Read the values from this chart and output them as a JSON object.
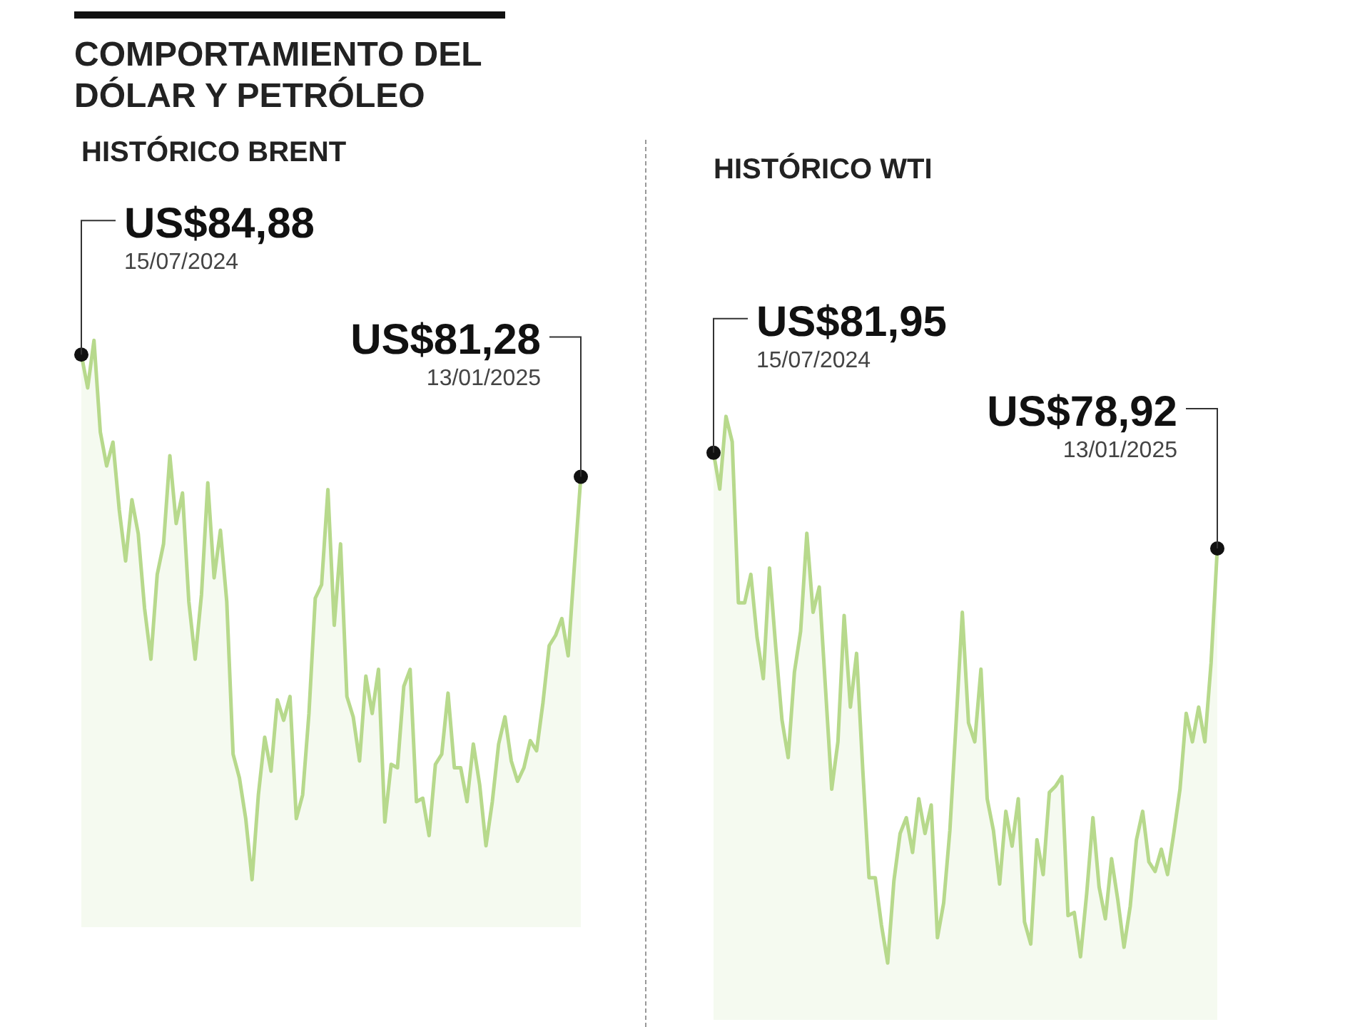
{
  "chart_data": [
    {
      "type": "area",
      "title": "COMPORTAMIENTO DEL DÓLAR Y PETRÓLEO",
      "subtitle": "HISTÓRICO BRENT",
      "categories": [
        null,
        null,
        null,
        null,
        null,
        null,
        null,
        null,
        null,
        null,
        null,
        null,
        null,
        null,
        null,
        null,
        null,
        null,
        null,
        null,
        null,
        null,
        null,
        null,
        null,
        null,
        null,
        null,
        null,
        null,
        null,
        null,
        null,
        null,
        null,
        null,
        null,
        null,
        null,
        null,
        null,
        null,
        null,
        null,
        null,
        null,
        null,
        null,
        null,
        null,
        null,
        null,
        null,
        null,
        null,
        null,
        null,
        null,
        null,
        null,
        null,
        null,
        null,
        null,
        null,
        null,
        null,
        null,
        null,
        null,
        null,
        null,
        null,
        null,
        null,
        null,
        null,
        null,
        null,
        null
      ],
      "series": [
        {
          "color": "#b7d98c",
          "values": [
            84.88,
            83.9,
            85.3,
            82.6,
            81.6,
            82.3,
            80.3,
            78.8,
            80.6,
            79.6,
            77.4,
            75.9,
            78.4,
            79.3,
            81.9,
            79.9,
            80.8,
            77.6,
            75.9,
            77.8,
            81.1,
            78.3,
            79.7,
            77.6,
            73.1,
            72.4,
            71.2,
            69.4,
            71.9,
            73.6,
            72.6,
            74.7,
            74.1,
            74.8,
            71.2,
            71.9,
            74.3,
            77.7,
            78.1,
            80.9,
            76.9,
            79.3,
            74.8,
            74.2,
            72.9,
            75.4,
            74.3,
            75.6,
            71.1,
            72.8,
            72.7,
            75.1,
            75.6,
            71.7,
            71.8,
            70.7,
            72.8,
            73.1,
            74.9,
            72.7,
            72.7,
            71.7,
            73.4,
            72.2,
            70.4,
            71.7,
            73.4,
            74.2,
            72.9,
            72.3,
            72.7,
            73.5,
            73.2,
            74.6,
            76.3,
            76.6,
            77.1,
            76.0,
            78.7,
            81.28
          ],
          "value_labels": [
            "US$84,88",
            null,
            null,
            null,
            null,
            null,
            null,
            null,
            null,
            null,
            null,
            null,
            null,
            null,
            null,
            null,
            null,
            null,
            null,
            null,
            null,
            null,
            null,
            null,
            null,
            null,
            null,
            null,
            null,
            null,
            null,
            null,
            null,
            null,
            null,
            null,
            null,
            null,
            null,
            null,
            null,
            null,
            null,
            null,
            null,
            null,
            null,
            null,
            null,
            null,
            null,
            null,
            null,
            null,
            null,
            null,
            null,
            null,
            null,
            null,
            null,
            null,
            null,
            null,
            null,
            null,
            null,
            null,
            null,
            null,
            null,
            null,
            null,
            null,
            null,
            null,
            null,
            null,
            null,
            "US$81,28"
          ]
        }
      ],
      "annotations": [
        "15/07/2024",
        "13/01/2025"
      ]
    },
    {
      "type": "area",
      "title": "HISTÓRICO WTI",
      "categories": [
        null,
        null,
        null,
        null,
        null,
        null,
        null,
        null,
        null,
        null,
        null,
        null,
        null,
        null,
        null,
        null,
        null,
        null,
        null,
        null,
        null,
        null,
        null,
        null,
        null,
        null,
        null,
        null,
        null,
        null,
        null,
        null,
        null,
        null,
        null,
        null,
        null,
        null,
        null,
        null,
        null,
        null,
        null,
        null,
        null,
        null,
        null,
        null,
        null,
        null,
        null,
        null,
        null,
        null,
        null,
        null,
        null,
        null,
        null,
        null,
        null,
        null,
        null,
        null,
        null,
        null,
        null,
        null,
        null,
        null,
        null,
        null,
        null,
        null,
        null,
        null,
        null,
        null,
        null,
        null,
        null,
        null
      ],
      "series": [
        {
          "color": "#b7d98c",
          "values": [
            81.95,
            80.8,
            83.1,
            82.3,
            77.2,
            77.2,
            78.1,
            76.1,
            74.8,
            78.3,
            75.8,
            73.5,
            72.3,
            75.0,
            76.3,
            79.4,
            76.9,
            77.7,
            74.5,
            71.3,
            72.8,
            76.8,
            73.9,
            75.6,
            71.9,
            68.5,
            68.5,
            67.0,
            65.8,
            68.4,
            69.9,
            70.4,
            69.3,
            71.0,
            69.9,
            70.8,
            66.6,
            67.7,
            70.0,
            73.4,
            76.9,
            73.4,
            72.8,
            75.1,
            71.0,
            70.0,
            68.3,
            70.6,
            69.5,
            71.0,
            67.1,
            66.4,
            69.7,
            68.6,
            71.2,
            71.4,
            71.7,
            67.3,
            67.4,
            66.0,
            68.0,
            70.4,
            68.2,
            67.2,
            69.1,
            67.8,
            66.3,
            67.6,
            69.7,
            70.6,
            69.0,
            68.7,
            69.4,
            68.6,
            69.9,
            71.3,
            73.7,
            72.8,
            73.9,
            72.8,
            75.3,
            78.92
          ],
          "value_labels": [
            "US$81,95",
            null,
            null,
            null,
            null,
            null,
            null,
            null,
            null,
            null,
            null,
            null,
            null,
            null,
            null,
            null,
            null,
            null,
            null,
            null,
            null,
            null,
            null,
            null,
            null,
            null,
            null,
            null,
            null,
            null,
            null,
            null,
            null,
            null,
            null,
            null,
            null,
            null,
            null,
            null,
            null,
            null,
            null,
            null,
            null,
            null,
            null,
            null,
            null,
            null,
            null,
            null,
            null,
            null,
            null,
            null,
            null,
            null,
            null,
            null,
            null,
            null,
            null,
            null,
            null,
            null,
            null,
            null,
            null,
            null,
            null,
            null,
            null,
            null,
            null,
            null,
            null,
            null,
            null,
            null,
            null,
            "US$78,92"
          ]
        }
      ],
      "annotations": [
        "15/07/2024",
        "13/01/2025"
      ]
    }
  ]
}
